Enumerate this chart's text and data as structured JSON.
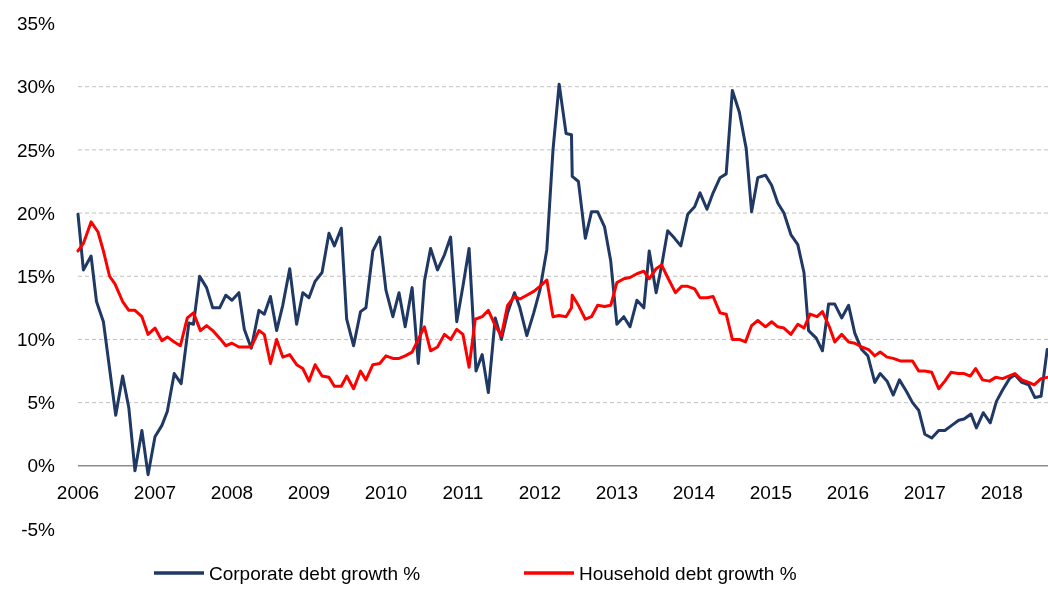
{
  "chart_data": {
    "type": "line",
    "ylim": [
      -5,
      35
    ],
    "yticks": [
      {
        "value": -5,
        "label": "-5%"
      },
      {
        "value": 0,
        "label": "0%"
      },
      {
        "value": 5,
        "label": "5%"
      },
      {
        "value": 10,
        "label": "10%"
      },
      {
        "value": 15,
        "label": "15%"
      },
      {
        "value": 20,
        "label": "20%"
      },
      {
        "value": 25,
        "label": "25%"
      },
      {
        "value": 30,
        "label": "30%"
      },
      {
        "value": 35,
        "label": "35%"
      }
    ],
    "xlim": [
      2006,
      2018.6
    ],
    "xticks": [
      2006,
      2007,
      2008,
      2009,
      2010,
      2011,
      2012,
      2013,
      2014,
      2015,
      2016,
      2017,
      2018
    ],
    "grid": "y",
    "legend": "bottom",
    "marker": "none",
    "line_style": "solid",
    "series": [
      {
        "name": "Corporate debt growth %",
        "color": "#1f3864",
        "x": [
          2006.0,
          2006.07,
          2006.17,
          2006.24,
          2006.33,
          2006.49,
          2006.58,
          2006.66,
          2006.74,
          2006.83,
          2006.91,
          2007.0,
          2007.09,
          2007.16,
          2007.25,
          2007.34,
          2007.44,
          2007.5,
          2007.58,
          2007.67,
          2007.75,
          2007.84,
          2007.92,
          2008.0,
          2008.09,
          2008.16,
          2008.25,
          2008.35,
          2008.42,
          2008.5,
          2008.58,
          2008.66,
          2008.75,
          2008.84,
          2008.92,
          2009.0,
          2009.08,
          2009.17,
          2009.26,
          2009.33,
          2009.42,
          2009.49,
          2009.58,
          2009.67,
          2009.74,
          2009.83,
          2009.92,
          2010.0,
          2010.09,
          2010.17,
          2010.25,
          2010.34,
          2010.42,
          2010.5,
          2010.58,
          2010.67,
          2010.76,
          2010.84,
          2010.92,
          2011.0,
          2011.08,
          2011.17,
          2011.25,
          2011.33,
          2011.42,
          2011.5,
          2011.58,
          2011.67,
          2011.74,
          2011.83,
          2011.92,
          2012.0,
          2012.09,
          2012.17,
          2012.25,
          2012.34,
          2012.41,
          2012.42,
          2012.5,
          2012.59,
          2012.67,
          2012.75,
          2012.84,
          2012.92,
          2013.0,
          2013.09,
          2013.17,
          2013.26,
          2013.35,
          2013.42,
          2013.51,
          2013.58,
          2013.66,
          2013.75,
          2013.83,
          2013.92,
          2014.01,
          2014.08,
          2014.17,
          2014.25,
          2014.34,
          2014.42,
          2014.5,
          2014.59,
          2014.68,
          2014.75,
          2014.83,
          2014.93,
          2015.01,
          2015.09,
          2015.17,
          2015.26,
          2015.35,
          2015.43,
          2015.49,
          2015.59,
          2015.67,
          2015.75,
          2015.83,
          2015.92,
          2016.01,
          2016.09,
          2016.18,
          2016.26,
          2016.35,
          2016.42,
          2016.51,
          2016.59,
          2016.67,
          2016.76,
          2016.84,
          2016.92,
          2017.0,
          2017.09,
          2017.18,
          2017.26,
          2017.35,
          2017.44,
          2017.51,
          2017.6,
          2017.67,
          2017.76,
          2017.85,
          2017.93,
          2018.01,
          2018.1,
          2018.17,
          2018.26,
          2018.35,
          2018.43,
          2018.51,
          2018.59
        ],
        "values": [
          19.9,
          15.5,
          16.6,
          13.0,
          11.4,
          4.0,
          7.1,
          4.6,
          -0.4,
          2.8,
          -0.7,
          2.3,
          3.2,
          4.3,
          7.3,
          6.5,
          11.3,
          11.2,
          15.0,
          14.1,
          12.5,
          12.5,
          13.5,
          13.1,
          13.7,
          10.8,
          9.3,
          12.3,
          12.0,
          13.4,
          10.7,
          12.7,
          15.6,
          11.2,
          13.7,
          13.3,
          14.6,
          15.3,
          18.4,
          17.4,
          18.8,
          11.6,
          9.5,
          12.2,
          12.5,
          17.0,
          18.1,
          13.9,
          11.8,
          13.7,
          11.0,
          14.1,
          8.1,
          14.6,
          17.2,
          15.5,
          16.7,
          18.1,
          11.4,
          14.2,
          17.2,
          7.5,
          8.8,
          5.8,
          11.7,
          10.0,
          12.1,
          13.7,
          12.5,
          10.3,
          12.1,
          13.9,
          17.1,
          25.0,
          30.2,
          26.3,
          26.2,
          22.9,
          22.5,
          18.0,
          20.1,
          20.1,
          18.9,
          16.2,
          11.2,
          11.8,
          11.0,
          13.1,
          12.5,
          17.0,
          13.7,
          15.8,
          18.6,
          18.0,
          17.4,
          19.9,
          20.5,
          21.6,
          20.3,
          21.6,
          22.8,
          23.1,
          29.7,
          28.0,
          25.1,
          20.1,
          22.8,
          23.0,
          22.2,
          20.8,
          20.0,
          18.3,
          17.5,
          15.3,
          10.7,
          10.1,
          9.1,
          12.8,
          12.8,
          11.7,
          12.7,
          10.5,
          9.2,
          8.7,
          6.6,
          7.3,
          6.7,
          5.6,
          6.8,
          5.9,
          5.0,
          4.4,
          2.5,
          2.2,
          2.8,
          2.8,
          3.2,
          3.6,
          3.7,
          4.1,
          3.0,
          4.2,
          3.4,
          5.1,
          6.0,
          6.9,
          7.2,
          6.6,
          6.4,
          5.4,
          5.5,
          9.2
        ]
      },
      {
        "name": "Household debt growth %",
        "color": "#ff0000",
        "x": [
          2006.0,
          2006.07,
          2006.17,
          2006.26,
          2006.33,
          2006.41,
          2006.48,
          2006.58,
          2006.66,
          2006.74,
          2006.83,
          2006.91,
          2007.0,
          2007.09,
          2007.16,
          2007.25,
          2007.33,
          2007.42,
          2007.5,
          2007.59,
          2007.67,
          2007.75,
          2007.84,
          2007.92,
          2008.0,
          2008.09,
          2008.16,
          2008.25,
          2008.35,
          2008.42,
          2008.5,
          2008.58,
          2008.66,
          2008.75,
          2008.84,
          2008.92,
          2009.0,
          2009.08,
          2009.17,
          2009.26,
          2009.33,
          2009.42,
          2009.49,
          2009.58,
          2009.67,
          2009.74,
          2009.83,
          2009.92,
          2010.0,
          2010.09,
          2010.17,
          2010.25,
          2010.34,
          2010.42,
          2010.5,
          2010.58,
          2010.67,
          2010.76,
          2010.84,
          2010.92,
          2011.0,
          2011.08,
          2011.16,
          2011.25,
          2011.33,
          2011.42,
          2011.5,
          2011.58,
          2011.67,
          2011.74,
          2011.83,
          2011.92,
          2012.0,
          2012.09,
          2012.17,
          2012.25,
          2012.34,
          2012.41,
          2012.42,
          2012.5,
          2012.59,
          2012.67,
          2012.75,
          2012.84,
          2012.92,
          2013.0,
          2013.09,
          2013.17,
          2013.26,
          2013.35,
          2013.42,
          2013.51,
          2013.58,
          2013.66,
          2013.76,
          2013.84,
          2013.92,
          2014.01,
          2014.08,
          2014.17,
          2014.25,
          2014.34,
          2014.42,
          2014.5,
          2014.59,
          2014.67,
          2014.75,
          2014.83,
          2014.93,
          2015.01,
          2015.09,
          2015.17,
          2015.26,
          2015.35,
          2015.43,
          2015.51,
          2015.6,
          2015.67,
          2015.76,
          2015.83,
          2015.92,
          2016.01,
          2016.09,
          2016.18,
          2016.27,
          2016.35,
          2016.42,
          2016.51,
          2016.59,
          2016.68,
          2016.76,
          2016.84,
          2016.92,
          2017.0,
          2017.09,
          2017.18,
          2017.26,
          2017.34,
          2017.43,
          2017.51,
          2017.59,
          2017.66,
          2017.75,
          2017.84,
          2017.92,
          2018.01,
          2018.09,
          2018.17,
          2018.26,
          2018.35,
          2018.42,
          2018.51,
          2018.59
        ],
        "values": [
          17.0,
          17.6,
          19.3,
          18.5,
          17.0,
          15.0,
          14.4,
          13.0,
          12.3,
          12.3,
          11.8,
          10.4,
          10.9,
          9.9,
          10.2,
          9.8,
          9.5,
          11.7,
          12.1,
          10.7,
          11.1,
          10.7,
          10.1,
          9.5,
          9.7,
          9.4,
          9.4,
          9.4,
          10.7,
          10.4,
          8.1,
          10.0,
          8.6,
          8.8,
          8.0,
          7.7,
          6.7,
          8.0,
          7.1,
          7.0,
          6.3,
          6.3,
          7.1,
          6.1,
          7.5,
          6.8,
          8.0,
          8.1,
          8.7,
          8.5,
          8.5,
          8.7,
          9.0,
          10.0,
          11.0,
          9.1,
          9.4,
          10.4,
          10.0,
          10.8,
          10.4,
          7.8,
          11.6,
          11.8,
          12.3,
          11.1,
          10.3,
          12.7,
          13.4,
          13.2,
          13.5,
          13.8,
          14.2,
          14.7,
          11.8,
          11.9,
          11.8,
          12.5,
          13.5,
          12.7,
          11.6,
          11.8,
          12.7,
          12.6,
          12.7,
          14.5,
          14.8,
          14.9,
          15.2,
          15.4,
          14.8,
          15.6,
          15.9,
          14.9,
          13.7,
          14.2,
          14.2,
          14.0,
          13.3,
          13.3,
          13.4,
          12.1,
          12.0,
          10.0,
          10.0,
          9.8,
          11.1,
          11.5,
          11.0,
          11.4,
          11.0,
          10.9,
          10.4,
          11.2,
          10.9,
          12.0,
          11.8,
          12.2,
          11.0,
          9.8,
          10.4,
          9.8,
          9.7,
          9.4,
          9.2,
          8.7,
          9.0,
          8.6,
          8.5,
          8.3,
          8.3,
          8.3,
          7.5,
          7.5,
          7.4,
          6.1,
          6.7,
          7.4,
          7.3,
          7.3,
          7.1,
          7.7,
          6.8,
          6.7,
          7.0,
          6.9,
          7.1,
          7.3,
          6.8,
          6.6,
          6.4,
          6.9,
          7.0
        ]
      }
    ]
  }
}
